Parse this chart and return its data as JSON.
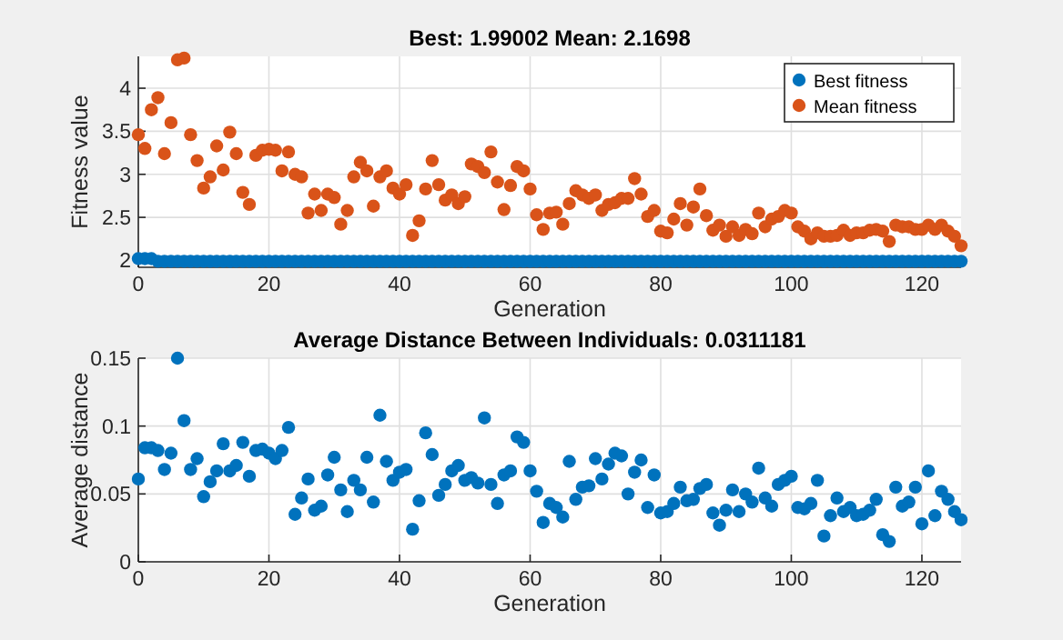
{
  "chart_data": [
    {
      "type": "scatter",
      "title": "Best: 1.99002 Mean: 2.1698",
      "xlabel": "Generation",
      "ylabel": "Fitness value",
      "x": [
        0,
        1,
        2,
        3,
        4,
        5,
        6,
        7,
        8,
        9,
        10,
        11,
        12,
        13,
        14,
        15,
        16,
        17,
        18,
        19,
        20,
        21,
        22,
        23,
        24,
        25,
        26,
        27,
        28,
        29,
        30,
        31,
        32,
        33,
        34,
        35,
        36,
        37,
        38,
        39,
        40,
        41,
        42,
        43,
        44,
        45,
        46,
        47,
        48,
        49,
        50,
        51,
        52,
        53,
        54,
        55,
        56,
        57,
        58,
        59,
        60,
        61,
        62,
        63,
        64,
        65,
        66,
        67,
        68,
        69,
        70,
        71,
        72,
        73,
        74,
        75,
        76,
        77,
        78,
        79,
        80,
        81,
        82,
        83,
        84,
        85,
        86,
        87,
        88,
        89,
        90,
        91,
        92,
        93,
        94,
        95,
        96,
        97,
        98,
        99,
        100,
        101,
        102,
        103,
        104,
        105,
        106,
        107,
        108,
        109,
        110,
        111,
        112,
        113,
        114,
        115,
        116,
        117,
        118,
        119,
        120,
        121,
        122,
        123,
        124,
        125,
        126
      ],
      "series": [
        {
          "name": "Best fitness",
          "color": "#0072bd",
          "values": [
            2.02,
            2.02,
            2.02,
            1.99,
            1.99,
            1.99,
            1.99,
            1.99,
            1.99,
            1.99,
            1.99,
            1.99,
            1.99,
            1.99,
            1.99,
            1.99,
            1.99,
            1.99,
            1.99,
            1.99,
            1.99,
            1.99,
            1.99,
            1.99,
            1.99,
            1.99,
            1.99,
            1.99,
            1.99,
            1.99,
            1.99,
            1.99,
            1.99,
            1.99,
            1.99,
            1.99,
            1.99,
            1.99,
            1.99,
            1.99,
            1.99,
            1.99,
            1.99,
            1.99,
            1.99,
            1.99,
            1.99,
            1.99,
            1.99,
            1.99,
            1.99,
            1.99,
            1.99,
            1.99,
            1.99,
            1.99,
            1.99,
            1.99,
            1.99,
            1.99,
            1.99,
            1.99,
            1.99,
            1.99,
            1.99,
            1.99,
            1.99,
            1.99,
            1.99,
            1.99,
            1.99,
            1.99,
            1.99,
            1.99,
            1.99,
            1.99,
            1.99,
            1.99,
            1.99,
            1.99,
            1.99,
            1.99,
            1.99,
            1.99,
            1.99,
            1.99,
            1.99,
            1.99,
            1.99,
            1.99,
            1.99,
            1.99,
            1.99,
            1.99,
            1.99,
            1.99,
            1.99,
            1.99,
            1.99,
            1.99,
            1.99,
            1.99,
            1.99,
            1.99,
            1.99,
            1.99,
            1.99,
            1.99,
            1.99,
            1.99,
            1.99,
            1.99,
            1.99,
            1.99,
            1.99,
            1.99,
            1.99,
            1.99,
            1.99,
            1.99,
            1.99,
            1.99,
            1.99,
            1.99,
            1.99,
            1.99,
            1.99
          ]
        },
        {
          "name": "Mean fitness",
          "color": "#d95319",
          "values": [
            3.46,
            3.3,
            3.75,
            3.89,
            3.24,
            3.6,
            4.33,
            4.35,
            3.46,
            3.16,
            2.84,
            2.97,
            3.33,
            3.05,
            3.49,
            3.24,
            2.79,
            2.65,
            3.22,
            3.28,
            3.29,
            3.28,
            3.04,
            3.26,
            3.0,
            2.97,
            2.55,
            2.77,
            2.58,
            2.77,
            2.73,
            2.42,
            2.58,
            2.97,
            3.14,
            3.04,
            2.63,
            2.97,
            3.04,
            2.84,
            2.77,
            2.88,
            2.29,
            2.46,
            2.83,
            3.16,
            2.88,
            2.7,
            2.76,
            2.66,
            2.74,
            3.12,
            3.09,
            3.02,
            3.26,
            2.91,
            2.59,
            2.87,
            3.09,
            3.04,
            2.83,
            2.53,
            2.36,
            2.55,
            2.56,
            2.42,
            2.66,
            2.81,
            2.76,
            2.72,
            2.76,
            2.58,
            2.65,
            2.67,
            2.72,
            2.72,
            2.95,
            2.77,
            2.51,
            2.58,
            2.34,
            2.32,
            2.48,
            2.66,
            2.41,
            2.62,
            2.83,
            2.52,
            2.35,
            2.41,
            2.28,
            2.39,
            2.29,
            2.36,
            2.31,
            2.55,
            2.39,
            2.48,
            2.51,
            2.58,
            2.55,
            2.39,
            2.34,
            2.25,
            2.32,
            2.28,
            2.28,
            2.29,
            2.35,
            2.29,
            2.32,
            2.32,
            2.35,
            2.36,
            2.34,
            2.22,
            2.41,
            2.39,
            2.39,
            2.36,
            2.36,
            2.41,
            2.36,
            2.41,
            2.34,
            2.28,
            2.17
          ]
        }
      ],
      "xlim": [
        0,
        126
      ],
      "xticks": [
        0,
        20,
        40,
        60,
        80,
        100,
        120
      ],
      "ylim": [
        1.92,
        4.37
      ],
      "yticks": [
        2,
        2.5,
        3,
        3.5,
        4
      ],
      "grid": true,
      "legend": "top right",
      "marker": "circle"
    },
    {
      "type": "scatter",
      "title": "Average Distance Between Individuals: 0.0311181",
      "xlabel": "Generation",
      "ylabel": "Average distance",
      "x": [
        0,
        1,
        2,
        3,
        4,
        5,
        6,
        7,
        8,
        9,
        10,
        11,
        12,
        13,
        14,
        15,
        16,
        17,
        18,
        19,
        20,
        21,
        22,
        23,
        24,
        25,
        26,
        27,
        28,
        29,
        30,
        31,
        32,
        33,
        34,
        35,
        36,
        37,
        38,
        39,
        40,
        41,
        42,
        43,
        44,
        45,
        46,
        47,
        48,
        49,
        50,
        51,
        52,
        53,
        54,
        55,
        56,
        57,
        58,
        59,
        60,
        61,
        62,
        63,
        64,
        65,
        66,
        67,
        68,
        69,
        70,
        71,
        72,
        73,
        74,
        75,
        76,
        77,
        78,
        79,
        80,
        81,
        82,
        83,
        84,
        85,
        86,
        87,
        88,
        89,
        90,
        91,
        92,
        93,
        94,
        95,
        96,
        97,
        98,
        99,
        100,
        101,
        102,
        103,
        104,
        105,
        106,
        107,
        108,
        109,
        110,
        111,
        112,
        113,
        114,
        115,
        116,
        117,
        118,
        119,
        120,
        121,
        122,
        123,
        124,
        125,
        126
      ],
      "series": [
        {
          "color": "#0072bd",
          "values": [
            0.061,
            0.084,
            0.084,
            0.082,
            0.068,
            0.08,
            0.15,
            0.104,
            0.068,
            0.076,
            0.048,
            0.059,
            0.067,
            0.087,
            0.067,
            0.071,
            0.088,
            0.063,
            0.082,
            0.083,
            0.08,
            0.076,
            0.082,
            0.099,
            0.035,
            0.047,
            0.061,
            0.038,
            0.041,
            0.064,
            0.077,
            0.053,
            0.037,
            0.06,
            0.053,
            0.077,
            0.044,
            0.108,
            0.074,
            0.06,
            0.066,
            0.068,
            0.024,
            0.045,
            0.095,
            0.079,
            0.049,
            0.057,
            0.067,
            0.071,
            0.06,
            0.062,
            0.058,
            0.106,
            0.057,
            0.043,
            0.064,
            0.067,
            0.092,
            0.088,
            0.067,
            0.052,
            0.029,
            0.043,
            0.04,
            0.033,
            0.074,
            0.046,
            0.055,
            0.056,
            0.076,
            0.061,
            0.072,
            0.08,
            0.078,
            0.05,
            0.066,
            0.075,
            0.04,
            0.064,
            0.036,
            0.037,
            0.043,
            0.055,
            0.045,
            0.046,
            0.054,
            0.057,
            0.036,
            0.027,
            0.038,
            0.053,
            0.037,
            0.05,
            0.044,
            0.069,
            0.047,
            0.041,
            0.057,
            0.06,
            0.063,
            0.04,
            0.039,
            0.043,
            0.06,
            0.019,
            0.034,
            0.047,
            0.037,
            0.04,
            0.034,
            0.035,
            0.038,
            0.046,
            0.02,
            0.015,
            0.055,
            0.041,
            0.044,
            0.055,
            0.028,
            0.067,
            0.034,
            0.052,
            0.046,
            0.037,
            0.031
          ]
        }
      ],
      "xlim": [
        0,
        126
      ],
      "xticks": [
        0,
        20,
        40,
        60,
        80,
        100,
        120
      ],
      "ylim": [
        0,
        0.15
      ],
      "yticks": [
        0,
        0.05,
        0.1,
        0.15
      ],
      "grid": true,
      "marker": "circle"
    }
  ]
}
